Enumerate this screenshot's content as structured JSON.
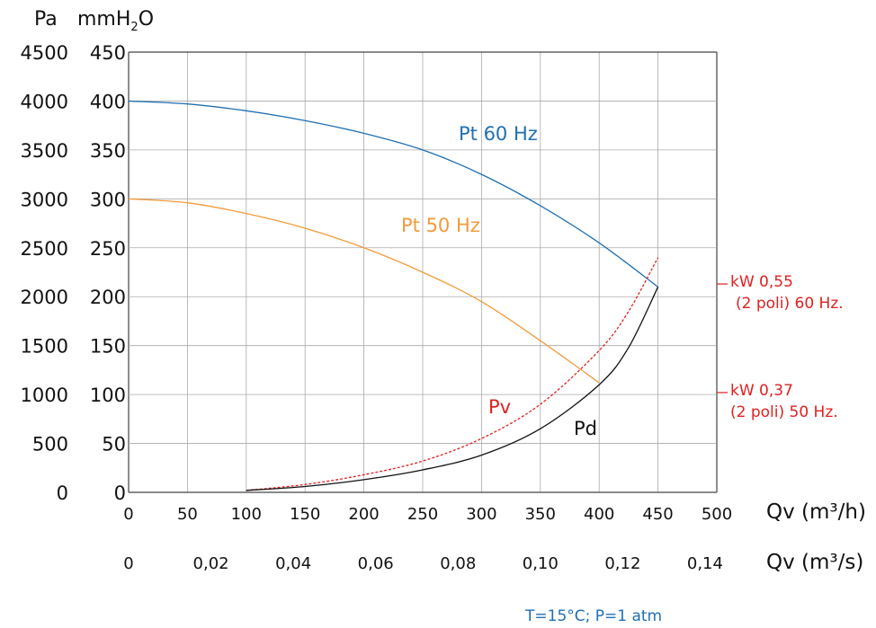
{
  "chart_data": {
    "type": "line",
    "yaxis_left_unit": "Pa",
    "yaxis_right_unit": "mmH2O",
    "yaxis_right_unit_base": "mmH",
    "yaxis_right_unit_sub": "2",
    "yaxis_right_unit_tail": "O",
    "y_pa_ticks": [
      "0",
      "500",
      "1000",
      "1500",
      "2000",
      "2500",
      "3000",
      "3500",
      "4000",
      "4500"
    ],
    "y_mm_ticks": [
      "0",
      "50",
      "100",
      "150",
      "200",
      "250",
      "300",
      "350",
      "400",
      "450"
    ],
    "ylim": [
      0,
      450
    ],
    "x_m3h_ticks": [
      "0",
      "50",
      "100",
      "150",
      "200",
      "250",
      "300",
      "350",
      "400",
      "450",
      "500"
    ],
    "x_m3s_ticks": [
      "0",
      "0,02",
      "0,04",
      "0,06",
      "0,08",
      "0,10",
      "0,12",
      "0,14"
    ],
    "xlim": [
      0,
      500
    ],
    "xlabel_m3h": "Qv (m³/h)",
    "xlabel_m3s": "Qv (m³/s)",
    "grid": true,
    "series": [
      {
        "name": "Pt 60 Hz",
        "color": "#1f6fb2",
        "style": "solid",
        "x": [
          0,
          50,
          100,
          150,
          200,
          250,
          300,
          350,
          400,
          450
        ],
        "y": [
          400,
          397,
          390,
          380,
          367,
          350,
          325,
          293,
          255,
          210
        ]
      },
      {
        "name": "Pt 50 Hz",
        "color": "#f39a3a",
        "style": "solid",
        "x": [
          0,
          50,
          100,
          150,
          200,
          250,
          300,
          350,
          400
        ],
        "y": [
          300,
          296,
          285,
          270,
          250,
          225,
          195,
          155,
          112
        ]
      },
      {
        "name": "Pv",
        "color": "#e02020",
        "style": "dashed",
        "x": [
          100,
          150,
          200,
          250,
          300,
          350,
          400,
          425,
          450
        ],
        "y": [
          2,
          8,
          18,
          32,
          55,
          90,
          145,
          185,
          240
        ]
      },
      {
        "name": "Pd",
        "color": "#111111",
        "style": "solid",
        "x": [
          100,
          150,
          200,
          250,
          300,
          350,
          400,
          425,
          450
        ],
        "y": [
          2,
          6,
          13,
          23,
          38,
          65,
          110,
          148,
          210
        ]
      }
    ],
    "annotations": [
      {
        "id": "p60",
        "line1": "kW 0,55",
        "line2": "(2 poli) 60 Hz.",
        "y": 213,
        "color": "#e02020"
      },
      {
        "id": "p50",
        "line1": "kW 0,37",
        "line2": "(2 poli) 50 Hz.",
        "y": 102,
        "color": "#e02020"
      }
    ],
    "footnote": "T=15°C; P=1 atm",
    "footnote_color": "#1f6fb2"
  }
}
